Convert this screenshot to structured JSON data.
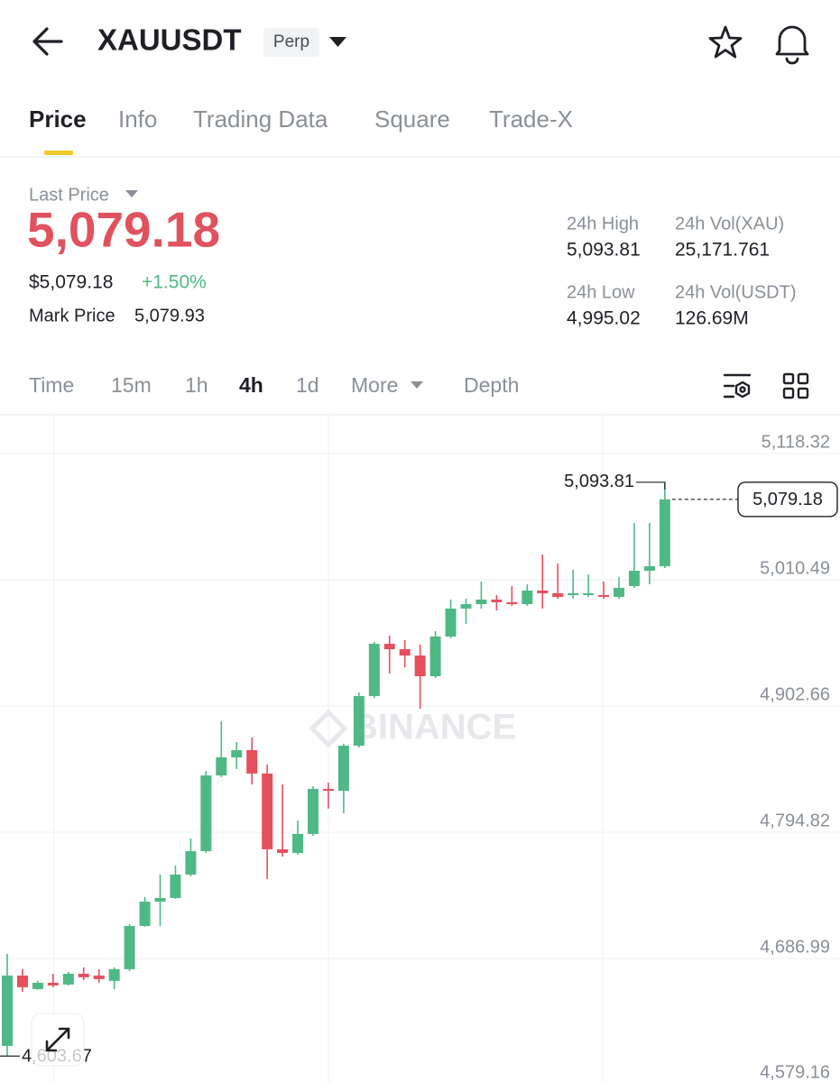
{
  "header": {
    "symbol": "XAUUSDT",
    "badge": "Perp"
  },
  "tabs": [
    "Price",
    "Info",
    "Trading Data",
    "Square",
    "Trade-X"
  ],
  "active_tab_index": 0,
  "price": {
    "label": "Last Price",
    "last": "5,079.18",
    "usd": "$5,079.18",
    "change": "+1.50%",
    "mark_label": "Mark Price",
    "mark": "5,079.93"
  },
  "stats": [
    {
      "label": "24h High",
      "value": "5,093.81"
    },
    {
      "label": "24h Vol(XAU)",
      "value": "25,171.761"
    },
    {
      "label": "24h Low",
      "value": "4,995.02"
    },
    {
      "label": "24h Vol(USDT)",
      "value": "126.69M"
    }
  ],
  "intervals": [
    "Time",
    "15m",
    "1h",
    "4h",
    "1d",
    "More",
    "Depth"
  ],
  "active_interval_index": 3,
  "chart_data": {
    "type": "candlestick",
    "watermark": "BINANCE",
    "up_color": "#4fb985",
    "down_color": "#e5505d",
    "grid": true,
    "ylim": [
      4581.55,
      5151.43
    ],
    "yticks": [
      {
        "value": 5118.32,
        "label": "5,118.32"
      },
      {
        "value": 5010.49,
        "label": "5,010.49"
      },
      {
        "value": 4902.66,
        "label": "4,902.66"
      },
      {
        "value": 4794.82,
        "label": "4,794.82"
      },
      {
        "value": 4686.99,
        "label": "4,686.99"
      },
      {
        "value": 4579.16,
        "label": "4,579.16"
      }
    ],
    "high_marker": {
      "value": 5093.81,
      "label": "5,093.81"
    },
    "low_marker": {
      "value": 4603.67,
      "label": "4,603.67"
    },
    "last_price": {
      "value": 5079.18,
      "label": "5,079.18"
    },
    "open": [
      4612.4,
      4672.5,
      4660.9,
      4666.3,
      4664.8,
      4674.0,
      4672.5,
      4667.9,
      4677.9,
      4714.8,
      4735.6,
      4738.7,
      4758.7,
      4778.7,
      4843.4,
      4858.8,
      4865.0,
      4845.0,
      4780.3,
      4777.2,
      4793.4,
      4831.9,
      4830.3,
      4868.8,
      4911.2,
      4955.8,
      4951.2,
      4945.8,
      4928.1,
      4962.0,
      4985.9,
      4989.7,
      4993.6,
      4991.3,
      4989.7,
      5001.3,
      4999.0,
      4997.4,
      4997.4,
      4997.4,
      4995.9,
      5005.1,
      5018.2,
      5022.1
    ],
    "high": [
      4691.0,
      4677.9,
      4667.9,
      4674.0,
      4675.6,
      4679.4,
      4677.9,
      4679.4,
      4716.4,
      4739.5,
      4758.7,
      4766.4,
      4789.5,
      4847.3,
      4889.6,
      4871.9,
      4875.8,
      4852.7,
      4835.7,
      4804.9,
      4834.2,
      4837.3,
      4870.4,
      4914.3,
      4957.4,
      4962.8,
      4959.0,
      4955.1,
      4966.6,
      4993.6,
      4994.3,
      5009.0,
      4997.4,
      5005.1,
      5006.7,
      5032.1,
      5024.4,
      5019.0,
      5015.1,
      5009.0,
      5012.8,
      5059.0,
      5059.0,
      5093.81
    ],
    "low": [
      4603.67,
      4658.6,
      4660.2,
      4662.5,
      4664.0,
      4668.6,
      4666.3,
      4660.9,
      4676.3,
      4714.1,
      4714.8,
      4737.9,
      4757.2,
      4777.2,
      4841.9,
      4848.8,
      4835.7,
      4754.9,
      4774.1,
      4775.7,
      4791.8,
      4815.0,
      4811.1,
      4867.3,
      4909.6,
      4930.4,
      4935.8,
      4900.4,
      4926.6,
      4960.5,
      4972.8,
      4985.9,
      4984.3,
      4988.2,
      4988.2,
      4985.9,
      4994.3,
      4994.3,
      4995.9,
      4994.3,
      4994.3,
      5003.6,
      5006.7,
      5020.5
    ],
    "close": [
      4672.5,
      4662.5,
      4666.3,
      4664.0,
      4674.0,
      4671.0,
      4669.4,
      4677.9,
      4714.8,
      4735.6,
      4738.7,
      4758.7,
      4778.7,
      4843.4,
      4858.8,
      4865.0,
      4845.0,
      4780.3,
      4777.2,
      4793.4,
      4831.9,
      4830.3,
      4868.8,
      4911.2,
      4955.8,
      4951.2,
      4945.8,
      4928.1,
      4962.0,
      4985.9,
      4989.7,
      4993.6,
      4991.3,
      4989.7,
      5001.3,
      4999.0,
      4995.9,
      4999.0,
      4999.0,
      4995.9,
      5003.6,
      5018.2,
      5022.1,
      5079.18
    ]
  }
}
